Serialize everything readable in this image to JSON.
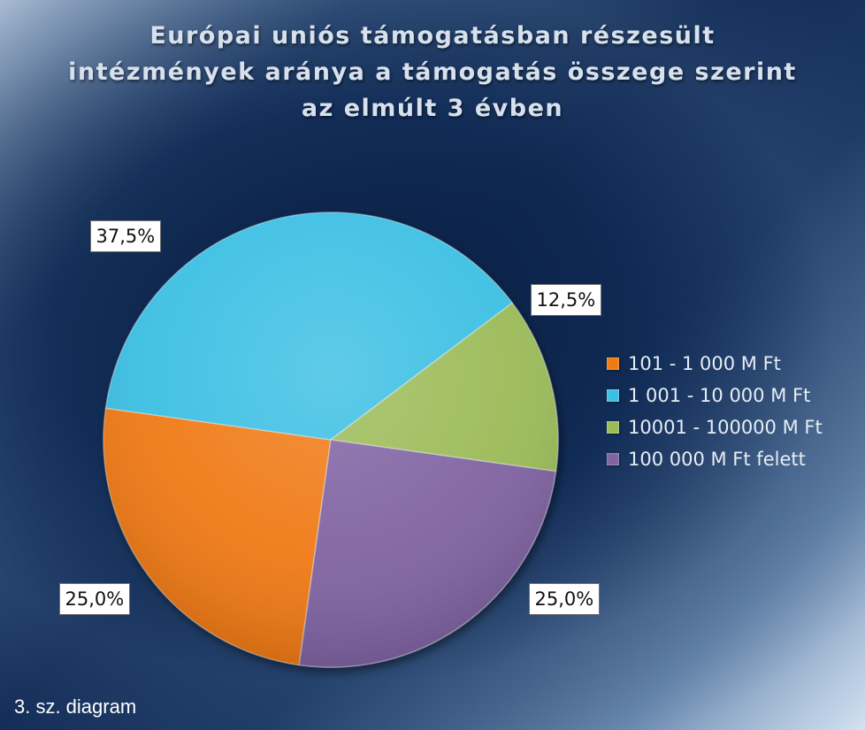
{
  "chart_data": {
    "type": "pie",
    "title_lines": [
      "Európai uniós támogatásban részesült",
      "intézmények aránya a támogatás összege szerint",
      "az elmúlt 3 évben"
    ],
    "categories": [
      "101 - 1 000 M Ft",
      "1 001 - 10 000 M Ft",
      "10001 - 100000 M Ft",
      "100 000 M Ft felett"
    ],
    "values": [
      25.0,
      37.5,
      12.5,
      25.0
    ],
    "value_labels": [
      "25,0%",
      "37,5%",
      "12,5%",
      "25,0%"
    ],
    "colors": [
      "#f07a12",
      "#3bbfe3",
      "#9bbb59",
      "#8064a2"
    ],
    "legend_position": "right"
  },
  "footer": {
    "note": "3. sz. diagram"
  }
}
